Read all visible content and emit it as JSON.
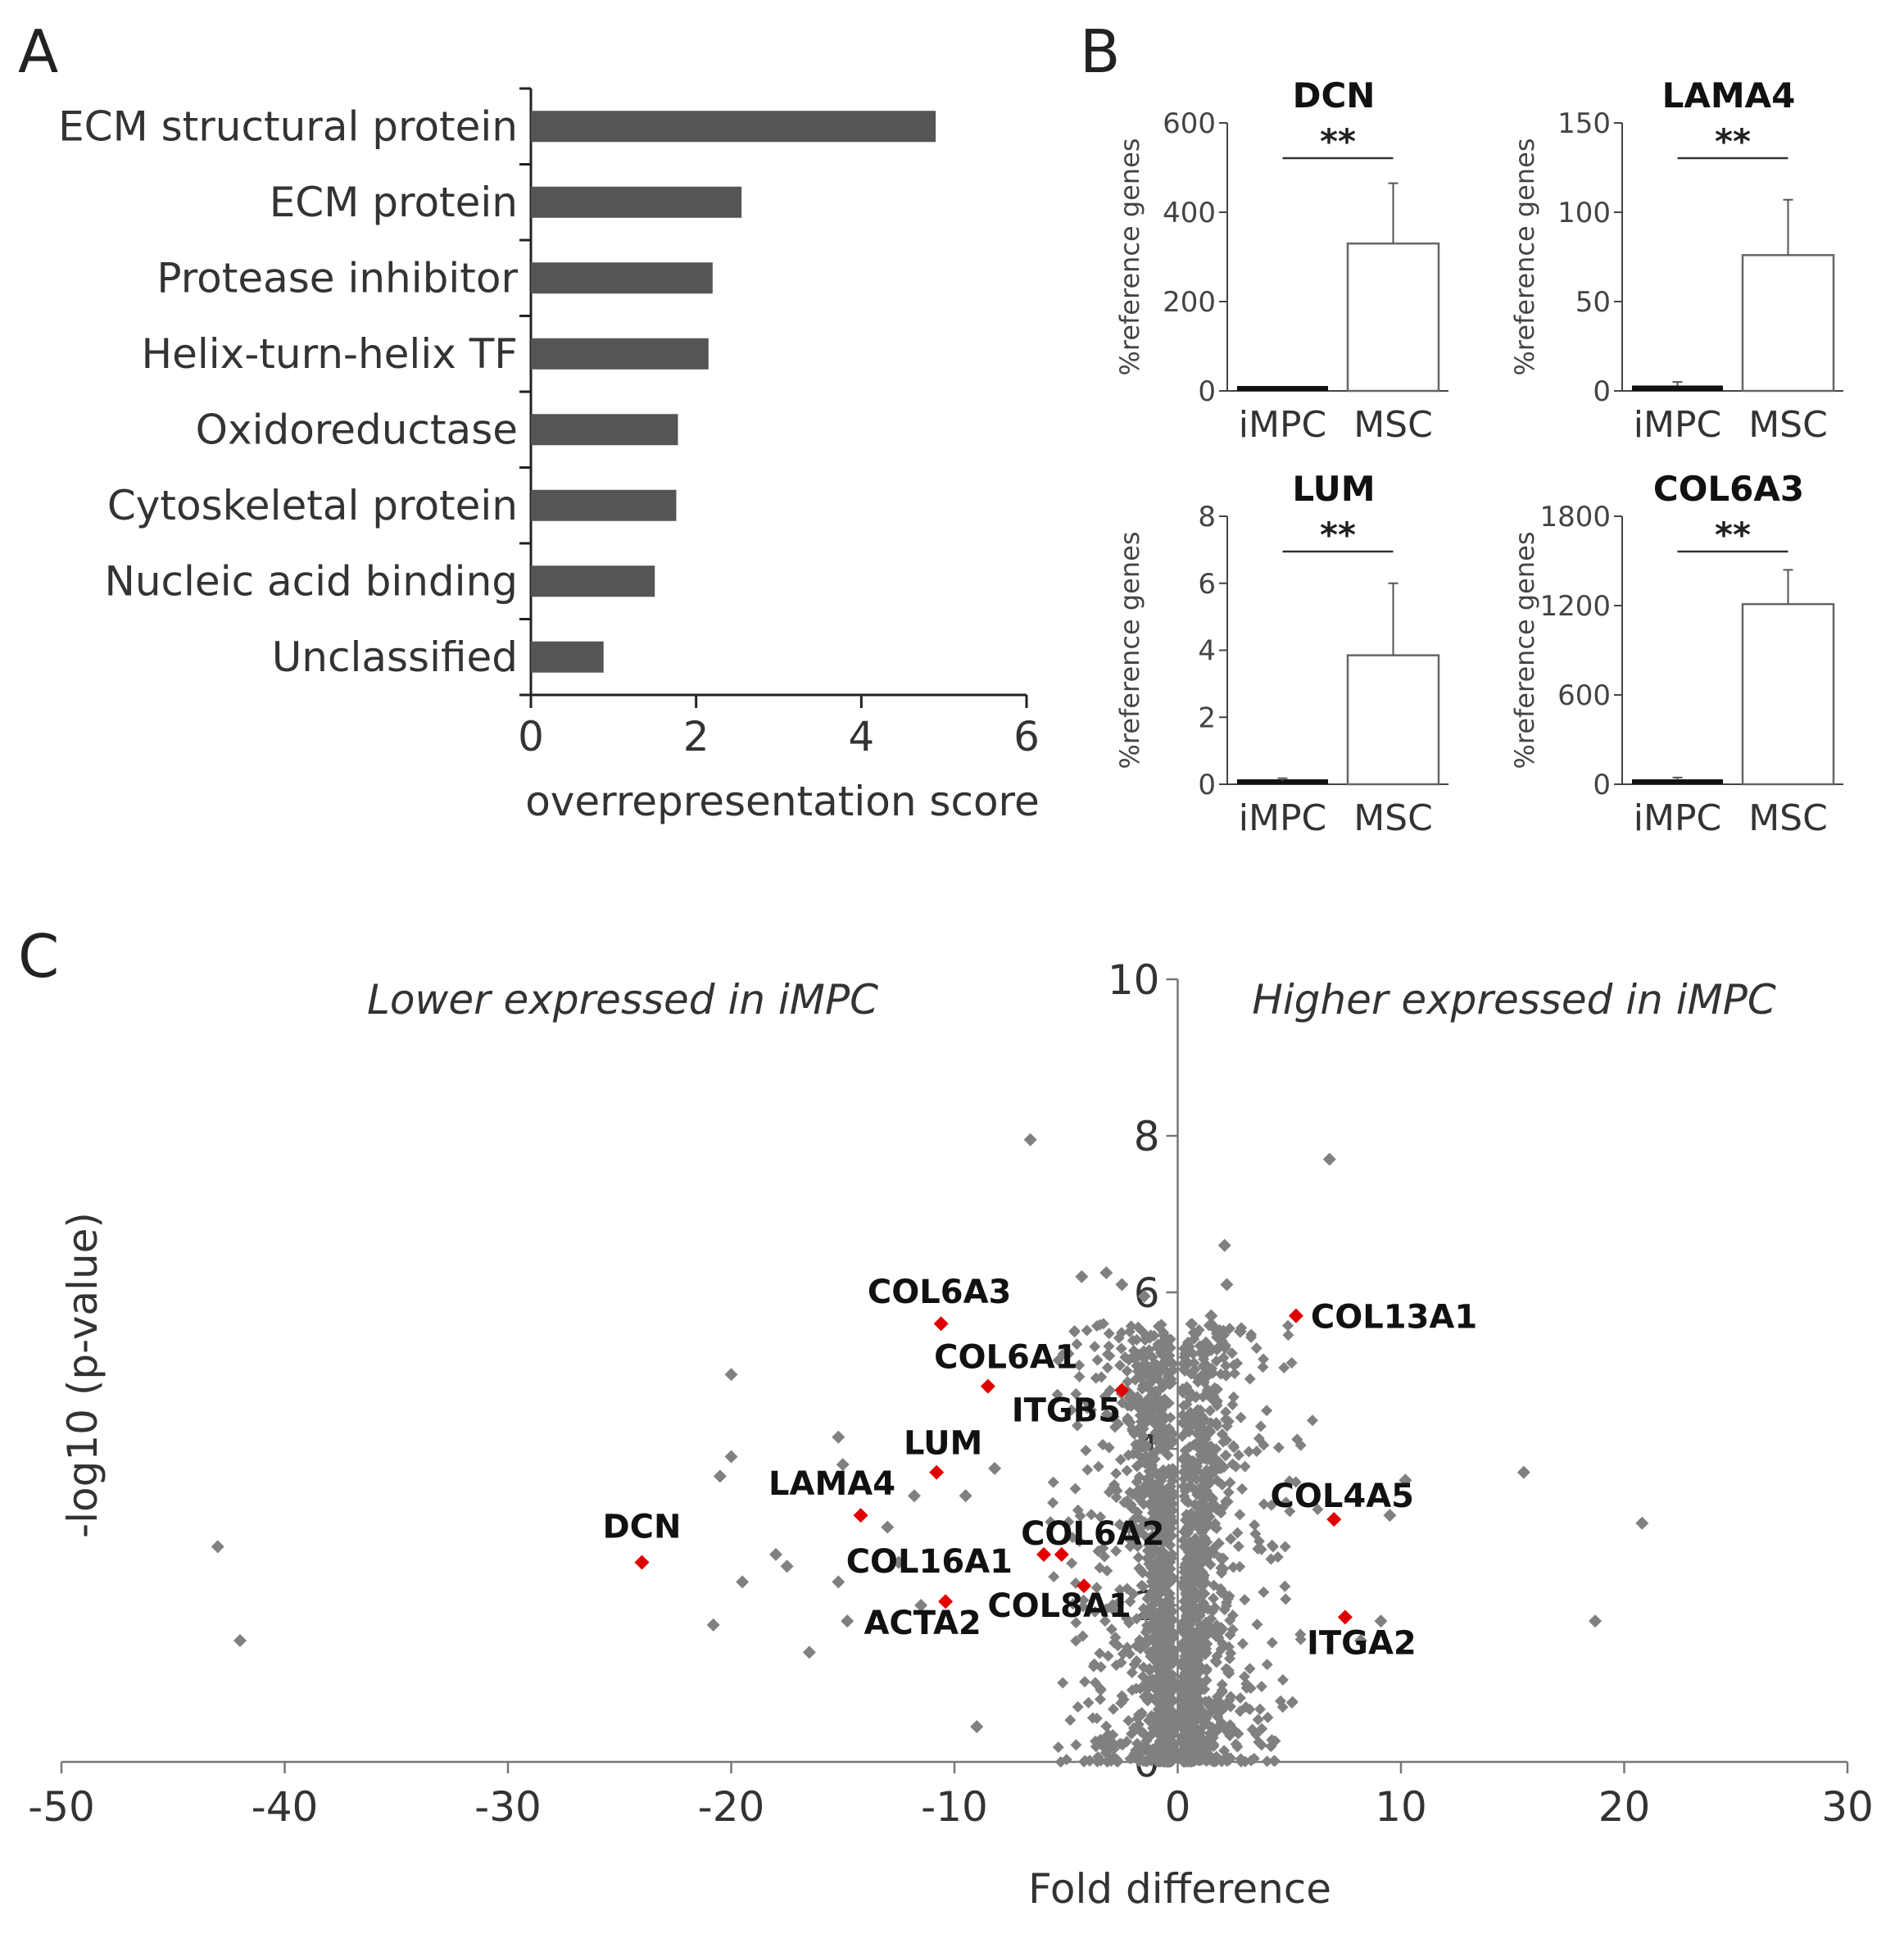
{
  "chart_data": [
    {
      "panel": "A",
      "type": "bar",
      "orientation": "horizontal",
      "categories": [
        "ECM structural protein",
        "ECM protein",
        "Protease inhibitor",
        "Helix-turn-helix TF",
        "Oxidoreductase",
        "Cytoskeletal protein",
        "Nucleic acid binding",
        "Unclassified"
      ],
      "values": [
        4.9,
        2.55,
        2.2,
        2.15,
        1.78,
        1.76,
        1.5,
        0.88
      ],
      "xlabel": "overrepresentation score",
      "xlim": [
        0,
        6
      ],
      "xticks": [
        "0",
        "2",
        "4",
        "6"
      ],
      "bar_color": "#555555"
    },
    {
      "panel": "B",
      "type": "bar",
      "ylabel": "%reference genes",
      "categories": [
        "iMPC",
        "MSC"
      ],
      "significance": "**",
      "subplots": [
        {
          "title": "DCN",
          "values": [
            0,
            330
          ],
          "errors": [
            0,
            135
          ],
          "ylim": [
            0,
            600
          ],
          "yticks": [
            "0",
            "200",
            "400",
            "600"
          ]
        },
        {
          "title": "LAMA4",
          "values": [
            3,
            76
          ],
          "errors": [
            2,
            31
          ],
          "ylim": [
            0,
            150
          ],
          "yticks": [
            "0",
            "50",
            "100",
            "150"
          ]
        },
        {
          "title": "LUM",
          "values": [
            0.1,
            3.85
          ],
          "errors": [
            0.08,
            2.15
          ],
          "ylim": [
            0,
            8
          ],
          "yticks": [
            "0",
            "2",
            "4",
            "6",
            "8"
          ]
        },
        {
          "title": "COL6A3",
          "values": [
            30,
            1210
          ],
          "errors": [
            15,
            230
          ],
          "ylim": [
            0,
            1800
          ],
          "yticks": [
            "0",
            "600",
            "1200",
            "1800"
          ]
        }
      ]
    },
    {
      "panel": "C",
      "type": "scatter",
      "title_left": "Lower expressed in iMPC",
      "title_right": "Higher expressed in iMPC",
      "xlabel": "Fold difference",
      "ylabel": "-log10 (p-value)",
      "xlim": [
        -50,
        30
      ],
      "ylim": [
        0,
        10
      ],
      "xticks": [
        "-50",
        "-40",
        "-30",
        "-20",
        "-10",
        "0",
        "10",
        "20",
        "30"
      ],
      "yticks": [
        "0",
        "2",
        "4",
        "6",
        "8",
        "10"
      ],
      "background_color": "#808080",
      "highlight_color": "#e00000",
      "background_points": [
        [
          -43,
          2.75
        ],
        [
          -42,
          1.55
        ],
        [
          -20,
          4.95
        ],
        [
          -20,
          3.9
        ],
        [
          -20.5,
          3.65
        ],
        [
          -20.8,
          1.75
        ],
        [
          -19.5,
          2.3
        ],
        [
          -18,
          2.65
        ],
        [
          -17.5,
          2.5
        ],
        [
          -16.5,
          1.4
        ],
        [
          -15.2,
          4.15
        ],
        [
          -15,
          3.8
        ],
        [
          -15.2,
          2.3
        ],
        [
          -14.8,
          1.8
        ],
        [
          -6.6,
          7.95
        ],
        [
          -4.3,
          6.2
        ],
        [
          -3.2,
          6.25
        ],
        [
          -2.5,
          6.1
        ],
        [
          -1.5,
          5.95
        ],
        [
          6.8,
          7.7
        ],
        [
          2.1,
          6.6
        ],
        [
          2.2,
          6.1
        ],
        [
          1.5,
          5.7
        ],
        [
          2.8,
          5.5
        ],
        [
          15.5,
          3.7
        ],
        [
          20.8,
          3.05
        ],
        [
          18.7,
          1.8
        ],
        [
          10.2,
          3.6
        ],
        [
          9.5,
          3.15
        ],
        [
          9.1,
          1.8
        ],
        [
          8.2,
          1.55
        ],
        [
          -9,
          0.45
        ],
        [
          -11.5,
          2.0
        ],
        [
          -12.5,
          2.55
        ],
        [
          -13,
          3.0
        ],
        [
          -9.5,
          3.4
        ],
        [
          -8.2,
          3.75
        ],
        [
          -11.8,
          3.4
        ]
      ],
      "highlighted": [
        {
          "label": "DCN",
          "x": -24,
          "y": 2.55
        },
        {
          "label": "LAMA4",
          "x": -14.2,
          "y": 3.15
        },
        {
          "label": "LUM",
          "x": -10.8,
          "y": 3.7
        },
        {
          "label": "COL6A3",
          "x": -10.6,
          "y": 5.6
        },
        {
          "label": "COL6A1",
          "x": -8.5,
          "y": 4.8
        },
        {
          "label": "ITGB5",
          "x": -2.5,
          "y": 4.75
        },
        {
          "label": "COL16A1",
          "x": -6,
          "y": 2.65
        },
        {
          "label": "COL6A2",
          "x": -5.2,
          "y": 2.65
        },
        {
          "label": "COL8A1",
          "x": -4.2,
          "y": 2.25
        },
        {
          "label": "ACTA2",
          "x": -10.4,
          "y": 2.05
        },
        {
          "label": "COL13A1",
          "x": 5.3,
          "y": 5.7
        },
        {
          "label": "COL4A5",
          "x": 7,
          "y": 3.1
        },
        {
          "label": "ITGA2",
          "x": 7.5,
          "y": 1.85
        }
      ]
    }
  ],
  "panel_labels": [
    "A",
    "B",
    "C"
  ]
}
